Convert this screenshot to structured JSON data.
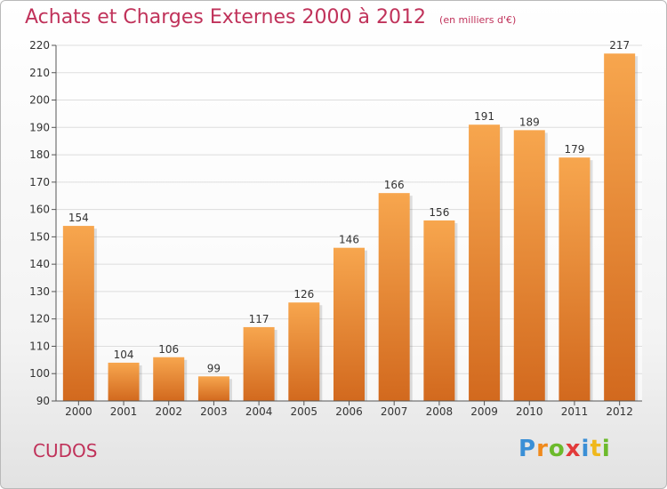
{
  "chart_data": {
    "type": "bar",
    "title": "Achats et Charges Externes 2000 à 2012",
    "subtitle": "(en milliers d'€)",
    "categories": [
      "2000",
      "2001",
      "2002",
      "2003",
      "2004",
      "2005",
      "2006",
      "2007",
      "2008",
      "2009",
      "2010",
      "2011",
      "2012"
    ],
    "values": [
      154,
      104,
      106,
      99,
      117,
      126,
      146,
      166,
      156,
      191,
      189,
      179,
      217
    ],
    "ylim": [
      90,
      220
    ],
    "yticks": [
      90,
      100,
      110,
      120,
      130,
      140,
      150,
      160,
      170,
      180,
      190,
      200,
      210,
      220
    ],
    "grid": true,
    "legend": "none",
    "colors": {
      "bar_top": "#f7a64e",
      "bar_bottom": "#d2691e",
      "title": "#c0325a",
      "grid": "#dddddd"
    }
  },
  "footer": {
    "city": "CUDOS",
    "brand_letters": [
      {
        "ch": "P",
        "color": "#3a8fd6"
      },
      {
        "ch": "r",
        "color": "#f08a1c"
      },
      {
        "ch": "o",
        "color": "#6cba2c"
      },
      {
        "ch": "x",
        "color": "#e23a3a"
      },
      {
        "ch": "i",
        "color": "#3a8fd6"
      },
      {
        "ch": "t",
        "color": "#f0b81c"
      },
      {
        "ch": "i",
        "color": "#6cba2c"
      }
    ]
  }
}
